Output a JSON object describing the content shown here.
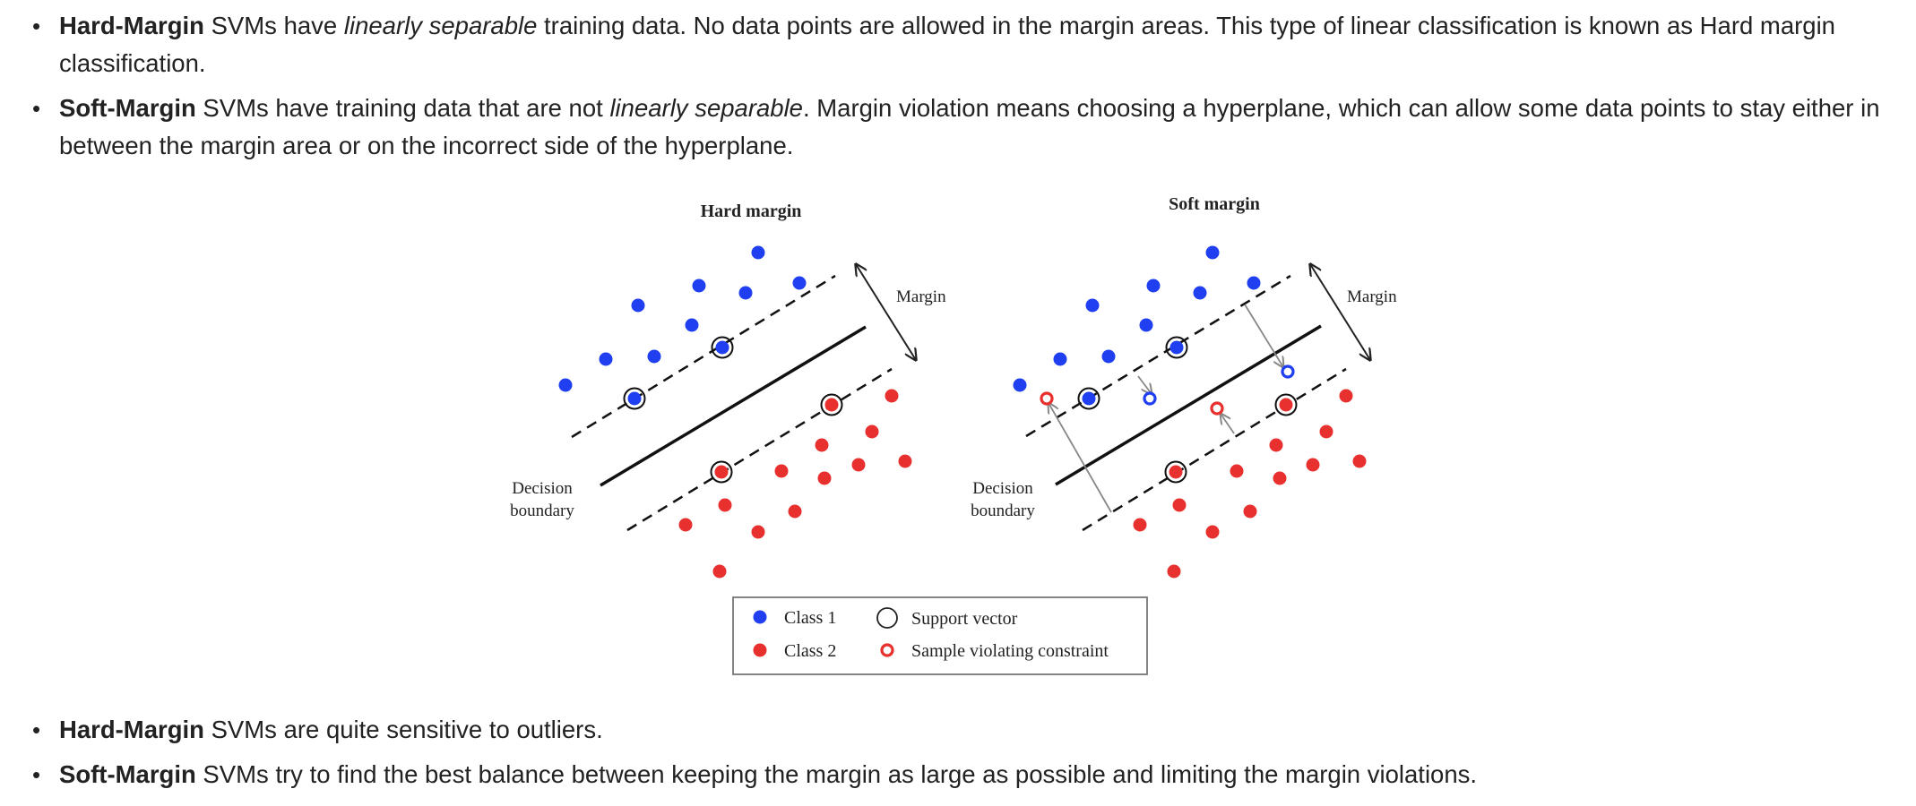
{
  "top_bullets": [
    {
      "bold": "Hard-Margin",
      "pre": " SVMs have ",
      "italic": "linearly separable",
      "post": " training data. No data points are allowed in the margin areas. This type of linear classification is known as Hard margin classification."
    },
    {
      "bold": "Soft-Margin",
      "pre": " SVMs have training data that are not ",
      "italic": "linearly separable",
      "post": ". Margin violation means choosing a hyperplane, which can allow some data points to stay either in between the margin area or on the incorrect side of the hyperplane."
    }
  ],
  "figure": {
    "hard": {
      "title": "Hard margin",
      "margin_label": "Margin",
      "decision_label_1": "Decision",
      "decision_label_2": "boundary"
    },
    "soft": {
      "title": "Soft margin",
      "margin_label": "Margin",
      "decision_label_1": "Decision",
      "decision_label_2": "boundary"
    },
    "legend": {
      "class1": "Class 1",
      "class2": "Class 2",
      "support_vector": "Support vector",
      "violating": "Sample violating constraint"
    },
    "colors": {
      "class1": "#1f3ff0",
      "class2": "#e8302f",
      "line": "#111111"
    }
  },
  "bottom_bullets": [
    {
      "bold": "Hard-Margin",
      "text": " SVMs are quite sensitive to outliers."
    },
    {
      "bold": "Soft-Margin",
      "text": " SVMs try to find the best balance between keeping the margin as large as possible and limiting the margin violations."
    }
  ]
}
